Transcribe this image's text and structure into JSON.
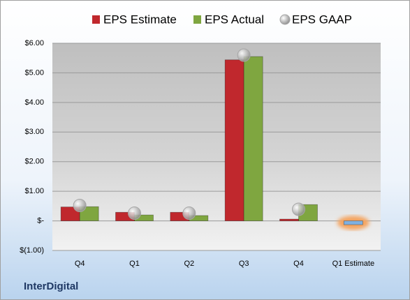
{
  "chart_data": {
    "type": "bar",
    "brand": "InterDigital",
    "categories": [
      "Q4",
      "Q1",
      "Q2",
      "Q3",
      "Q4",
      "Q1 Estimate"
    ],
    "series": [
      {
        "name": "EPS Estimate",
        "color": "#c0282d",
        "colors": [
          "#c0282d",
          "#c0282d",
          "#c0282d",
          "#c0282d",
          "#c0282d",
          "#7fb0e0"
        ],
        "values": [
          0.47,
          0.29,
          0.29,
          5.44,
          0.06,
          -0.13
        ]
      },
      {
        "name": "EPS Actual",
        "color": "#7fa640",
        "values": [
          0.48,
          0.2,
          0.18,
          5.55,
          0.55,
          null
        ]
      },
      {
        "name": "EPS GAAP",
        "color": "#a6a6a6",
        "marker": "circle",
        "values": [
          0.52,
          0.26,
          0.26,
          5.6,
          0.39,
          null
        ]
      }
    ],
    "ylim": [
      -1,
      6
    ],
    "yticks": [
      {
        "value": -1,
        "label": "$(1.00)"
      },
      {
        "value": 0,
        "label": "$-"
      },
      {
        "value": 1,
        "label": "$1.00"
      },
      {
        "value": 2,
        "label": "$2.00"
      },
      {
        "value": 3,
        "label": "$3.00"
      },
      {
        "value": 4,
        "label": "$4.00"
      },
      {
        "value": 5,
        "label": "$5.00"
      },
      {
        "value": 6,
        "label": "$6.00"
      }
    ],
    "grid": true
  }
}
